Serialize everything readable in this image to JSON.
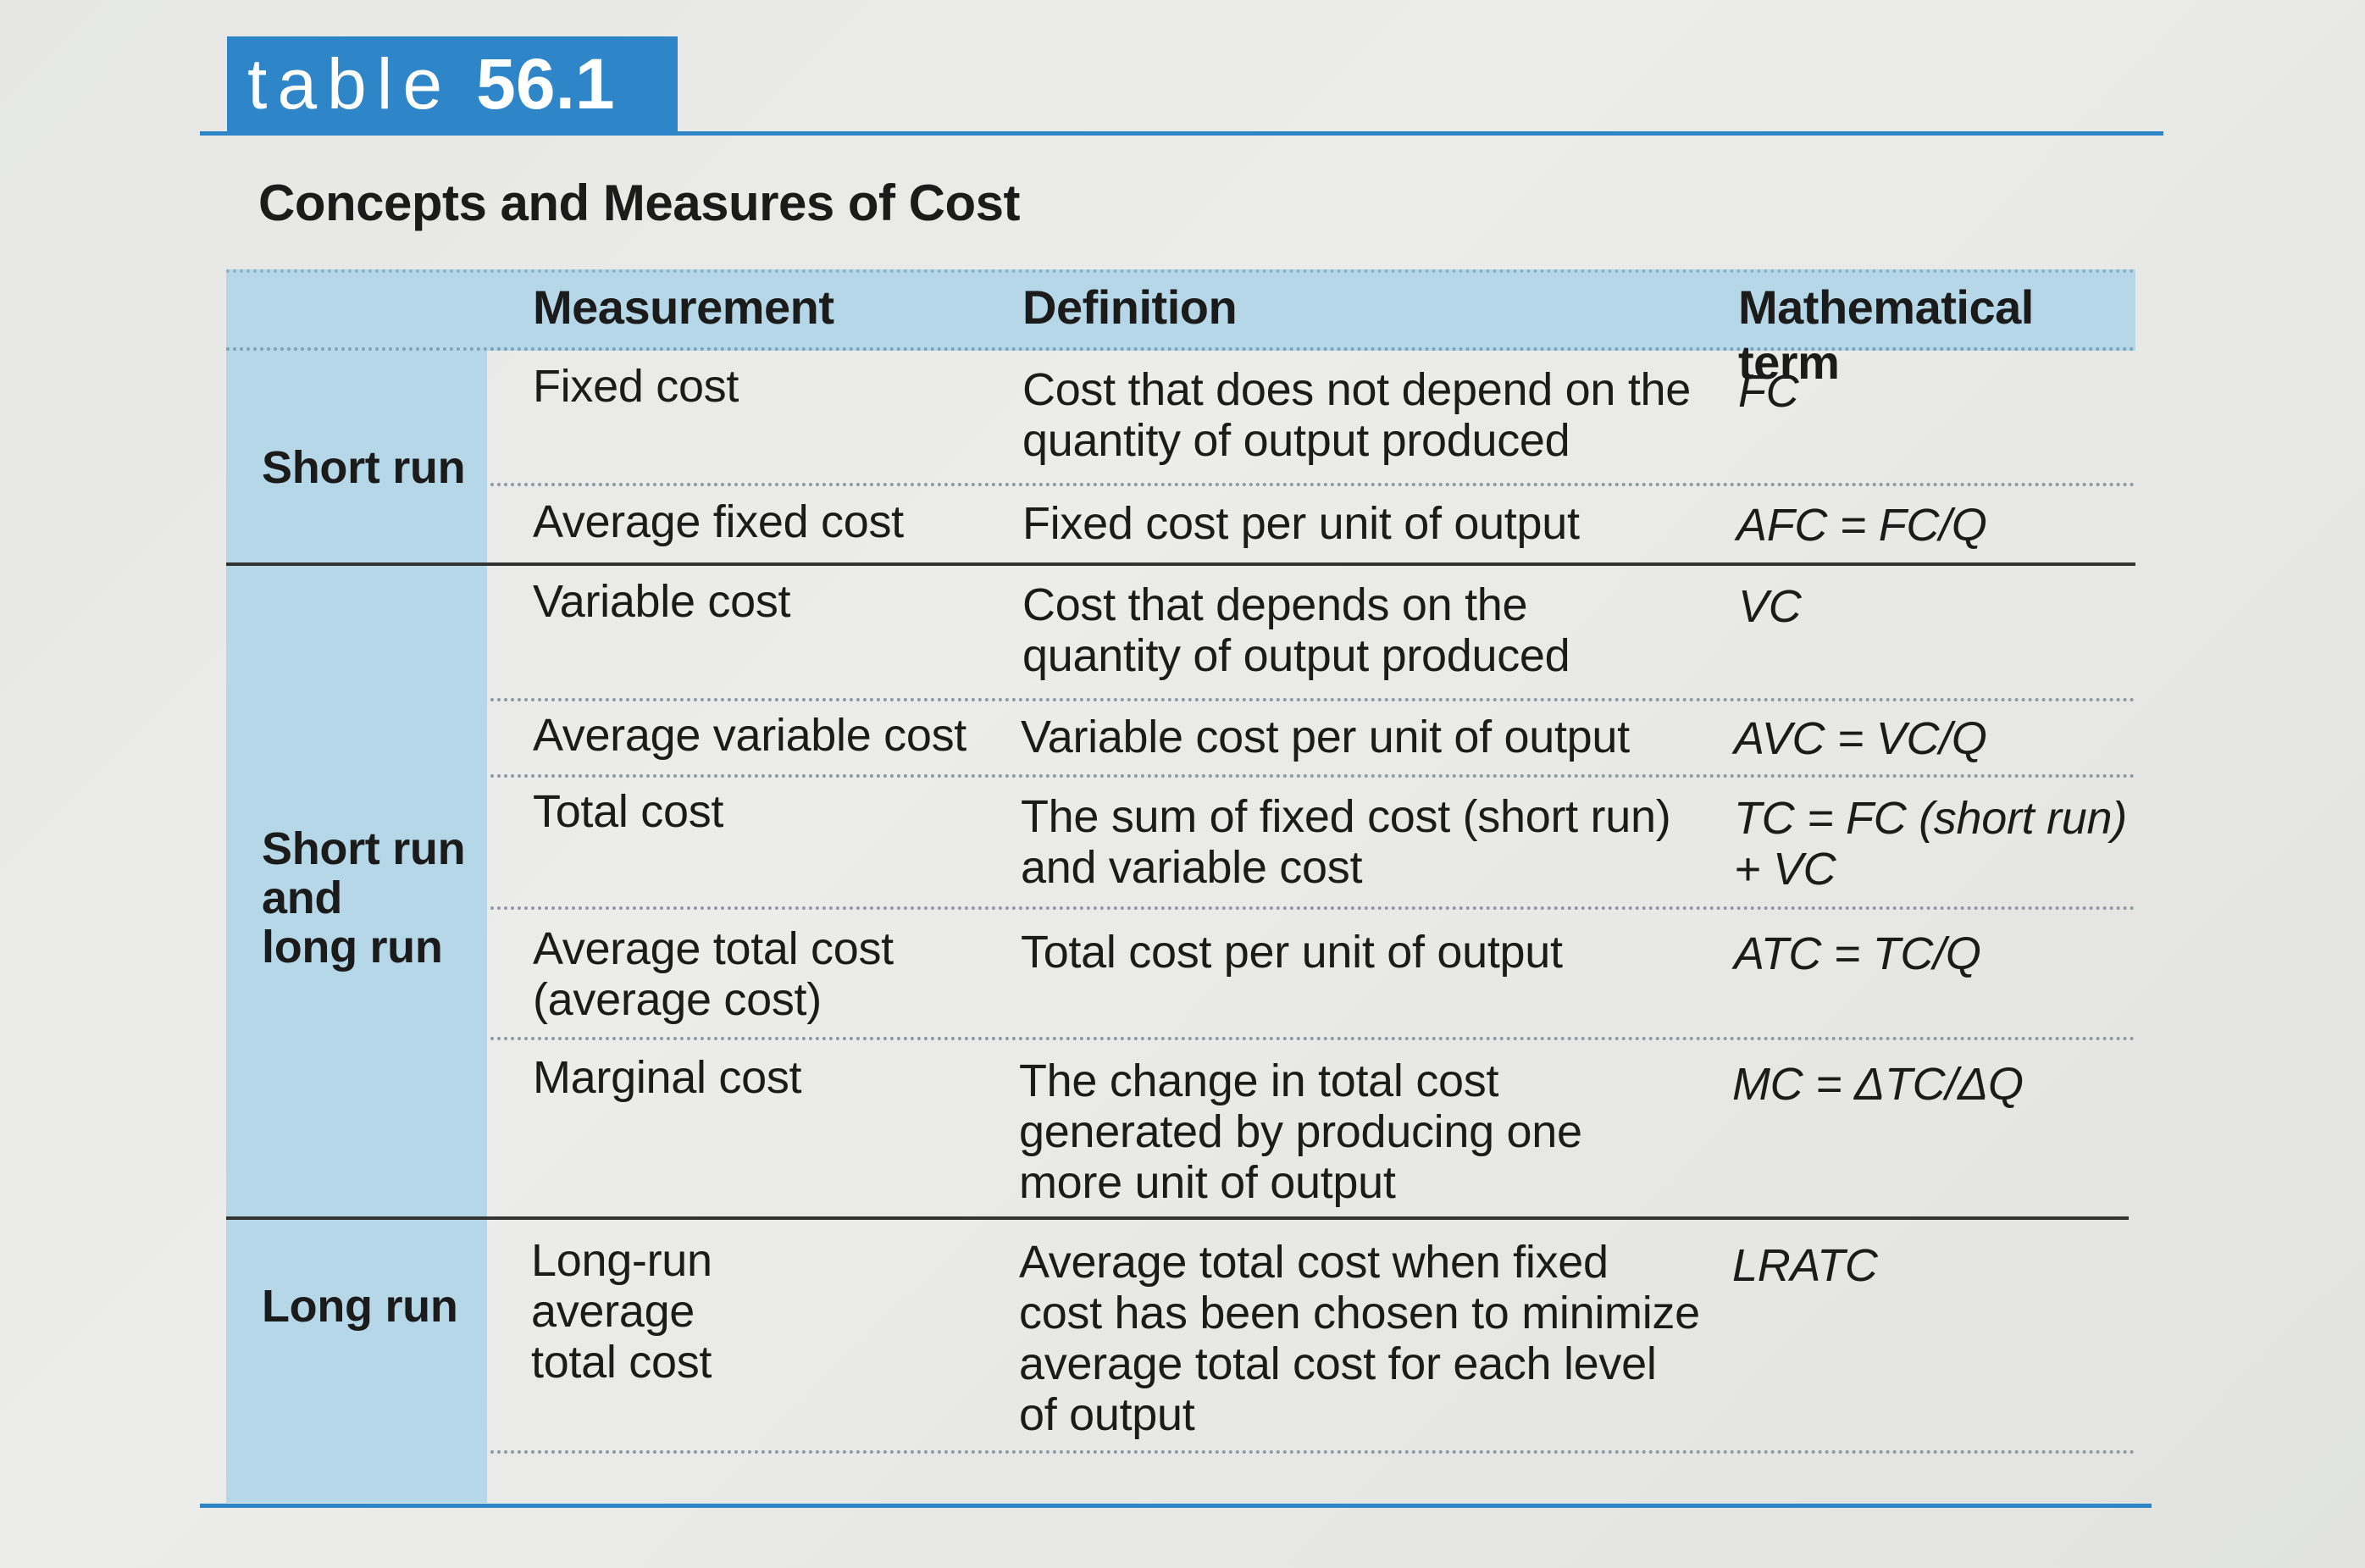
{
  "header": {
    "tag_word": "table",
    "tag_number": "56.1",
    "title": "Concepts and Measures of Cost"
  },
  "columns": {
    "measurement": "Measurement",
    "definition": "Definition",
    "math": "Mathematical term"
  },
  "groups": {
    "short_run": "Short run",
    "both": "Short run\nand\nlong run",
    "long_run": "Long run"
  },
  "rows": [
    {
      "measurement": "Fixed cost",
      "definition": "Cost that does not depend on the\nquantity of output produced",
      "math": "FC"
    },
    {
      "measurement": "Average fixed cost",
      "definition": "Fixed cost per unit of output",
      "math": "AFC = FC/Q"
    },
    {
      "measurement": "Variable cost",
      "definition": "Cost that depends on the\nquantity of output produced",
      "math": "VC"
    },
    {
      "measurement": "Average variable cost",
      "definition": "Variable cost per unit of output",
      "math": "AVC = VC/Q"
    },
    {
      "measurement": "Total cost",
      "definition": "The sum of fixed cost (short run)\nand variable cost",
      "math": "TC = FC (short run)\n+ VC"
    },
    {
      "measurement": "Average total cost\n(average cost)",
      "definition": "Total cost per unit of output",
      "math": "ATC = TC/Q"
    },
    {
      "measurement": "Marginal cost",
      "definition": "The change in total cost\ngenerated by producing one\nmore unit of output",
      "math": "MC = ΔTC/ΔQ"
    },
    {
      "measurement": "Long-run\naverage\ntotal cost",
      "definition": "Average total cost when fixed\ncost has been chosen to minimize\naverage total cost for each level\nof output",
      "math": "LRATC"
    }
  ],
  "colors": {
    "accent_blue": "#2e86c8",
    "header_band": "#b6d7e8"
  }
}
